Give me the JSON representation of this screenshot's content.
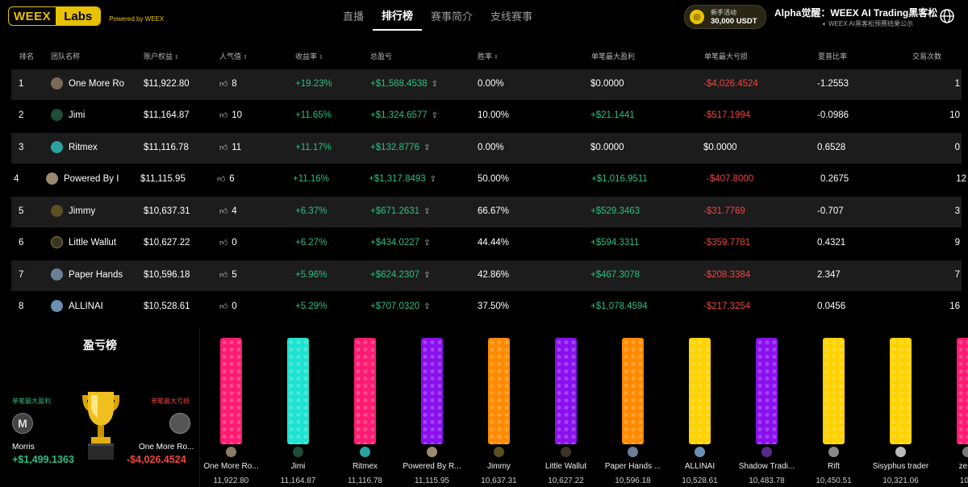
{
  "header": {
    "logo_main": "WEEX",
    "logo_labs": "Labs",
    "powered_by": "Powered by WEEX",
    "nav": [
      "直播",
      "排行榜",
      "赛事简介",
      "支线赛事"
    ],
    "active_nav": 1,
    "promo_line1": "新手活动",
    "promo_line2": "30,000 USDT",
    "hackathon_title": "Alpha觉醒：WEEX AI Trading黑客松",
    "hackathon_sub": "WEEX AI黑客松预赛结果公示"
  },
  "table": {
    "columns": [
      "排名",
      "团队名称",
      "账户权益",
      "人气值",
      "收益率",
      "总盈亏",
      "胜率",
      "单笔最大盈利",
      "单笔最大亏损",
      "夏普比率",
      "交易次数"
    ],
    "rows": [
      {
        "rank": "1",
        "team": "One More Ro",
        "equity": "$11,922.80",
        "likes": "8",
        "roi": "+19.23%",
        "pnl": "+$1,588.4538",
        "winrate": "0.00%",
        "max_profit": "$0.0000",
        "max_loss": "-$4,026.4524",
        "sharpe": "-1.2553",
        "trades": "1"
      },
      {
        "rank": "2",
        "team": "Jimi",
        "equity": "$11,164.87",
        "likes": "10",
        "roi": "+11.65%",
        "pnl": "+$1,324.6577",
        "winrate": "10.00%",
        "max_profit": "+$21.1441",
        "max_loss": "-$517.1994",
        "sharpe": "-0.0986",
        "trades": "10"
      },
      {
        "rank": "3",
        "team": "Ritmex",
        "equity": "$11,116.78",
        "likes": "11",
        "roi": "+11.17%",
        "pnl": "+$132.8776",
        "winrate": "0.00%",
        "max_profit": "$0.0000",
        "max_loss": "$0.0000",
        "sharpe": "0.6528",
        "trades": "0"
      },
      {
        "rank": "4",
        "team": "Powered By I",
        "equity": "$11,115.95",
        "likes": "6",
        "roi": "+11.16%",
        "pnl": "+$1,317.8493",
        "winrate": "50.00%",
        "max_profit": "+$1,016.9511",
        "max_loss": "-$407.8000",
        "sharpe": "0.2675",
        "trades": "12"
      },
      {
        "rank": "5",
        "team": "Jimmy",
        "equity": "$10,637.31",
        "likes": "4",
        "roi": "+6.37%",
        "pnl": "+$671.2631",
        "winrate": "66.67%",
        "max_profit": "+$529.3463",
        "max_loss": "-$31.7769",
        "sharpe": "-0.707",
        "trades": "3"
      },
      {
        "rank": "6",
        "team": "Little Wallut",
        "equity": "$10,627.22",
        "likes": "0",
        "roi": "+6.27%",
        "pnl": "+$434.0227",
        "winrate": "44.44%",
        "max_profit": "+$594.3311",
        "max_loss": "-$359.7781",
        "sharpe": "0.4321",
        "trades": "9"
      },
      {
        "rank": "7",
        "team": "Paper Hands",
        "equity": "$10,596.18",
        "likes": "5",
        "roi": "+5.96%",
        "pnl": "+$624.2307",
        "winrate": "42.86%",
        "max_profit": "+$467.3078",
        "max_loss": "-$208.3384",
        "sharpe": "2.347",
        "trades": "7"
      },
      {
        "rank": "8",
        "team": "ALLINAI",
        "equity": "$10,528.61",
        "likes": "0",
        "roi": "+5.29%",
        "pnl": "+$707.0320",
        "winrate": "37.50%",
        "max_profit": "+$1,078.4594",
        "max_loss": "-$217.3254",
        "sharpe": "0.0456",
        "trades": "16"
      }
    ]
  },
  "pnl_board": {
    "title": "盈亏榜",
    "max_profit_label": "单笔最大盈利",
    "max_loss_label": "单笔最大亏损",
    "profit_avatar_letter": "M",
    "profit_name": "Morris",
    "profit_value": "+$1,499.1363",
    "loss_name": "One More Ro...",
    "loss_value": "-$4,026.4524"
  },
  "bars": [
    {
      "name": "One More Ro...",
      "value": "11,922.80",
      "color": "#ff1b72",
      "avatar_color": "#8a7a66"
    },
    {
      "name": "Jimi",
      "value": "11,164.87",
      "color": "#1de3d0",
      "avatar_color": "#1e4d3a"
    },
    {
      "name": "Ritmex",
      "value": "11,116.78",
      "color": "#ff1b72",
      "avatar_color": "#2aa3a3"
    },
    {
      "name": "Powered By R...",
      "value": "11,115.95",
      "color": "#8a10ee",
      "avatar_color": "#9a8a70"
    },
    {
      "name": "Jimmy",
      "value": "10,637.31",
      "color": "#ff8a00",
      "avatar_color": "#5a5020"
    },
    {
      "name": "Little Wallut",
      "value": "10,627.22",
      "color": "#8a10ee",
      "avatar_color": "#3a3424"
    },
    {
      "name": "Paper Hands ...",
      "value": "10,596.18",
      "color": "#ff8a00",
      "avatar_color": "#6b7f96"
    },
    {
      "name": "ALLINAI",
      "value": "10,528.61",
      "color": "#ffd200",
      "avatar_color": "#6a90b4"
    },
    {
      "name": "Shadow Tradi...",
      "value": "10,483.78",
      "color": "#8a10ee",
      "avatar_color": "#5a2a88"
    },
    {
      "name": "Rift",
      "value": "10,450.51",
      "color": "#ffd200",
      "avatar_color": "#8a8a8a"
    },
    {
      "name": "Sisyphus trader",
      "value": "10,321.06",
      "color": "#ffd200",
      "avatar_color": "#bbbbbb"
    },
    {
      "name": "zer...",
      "value": "10...",
      "color": "#ff1b72",
      "avatar_color": "#777777"
    }
  ]
}
